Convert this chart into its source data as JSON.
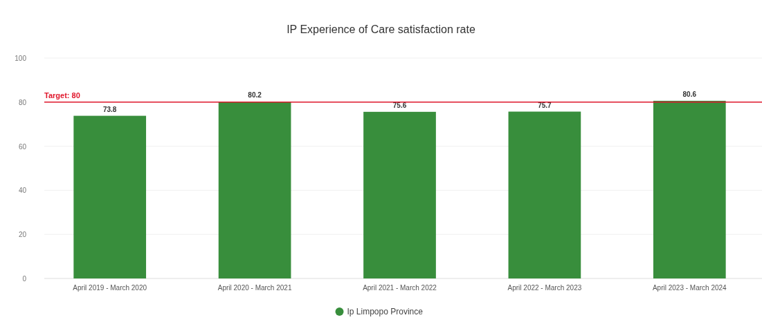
{
  "chart_data": {
    "type": "bar",
    "title": "IP Experience of Care satisfaction rate",
    "categories": [
      "April 2019 - March 2020",
      "April 2020 - March 2021",
      "April 2021 - March 2022",
      "April 2022 - March 2023",
      "April 2023 - March 2024"
    ],
    "series": [
      {
        "name": "Ip Limpopo Province",
        "color": "#388e3c",
        "values": [
          73.8,
          80.2,
          75.6,
          75.7,
          80.6
        ]
      }
    ],
    "ylim": [
      0,
      100
    ],
    "yticks": [
      0,
      20,
      40,
      60,
      80,
      100
    ],
    "grid": "y",
    "legend": "bottom",
    "data_labels": true,
    "ref_lines": [
      {
        "axis": "y",
        "value": 80,
        "label": "Target: 80",
        "color": "#e0162b"
      }
    ]
  }
}
